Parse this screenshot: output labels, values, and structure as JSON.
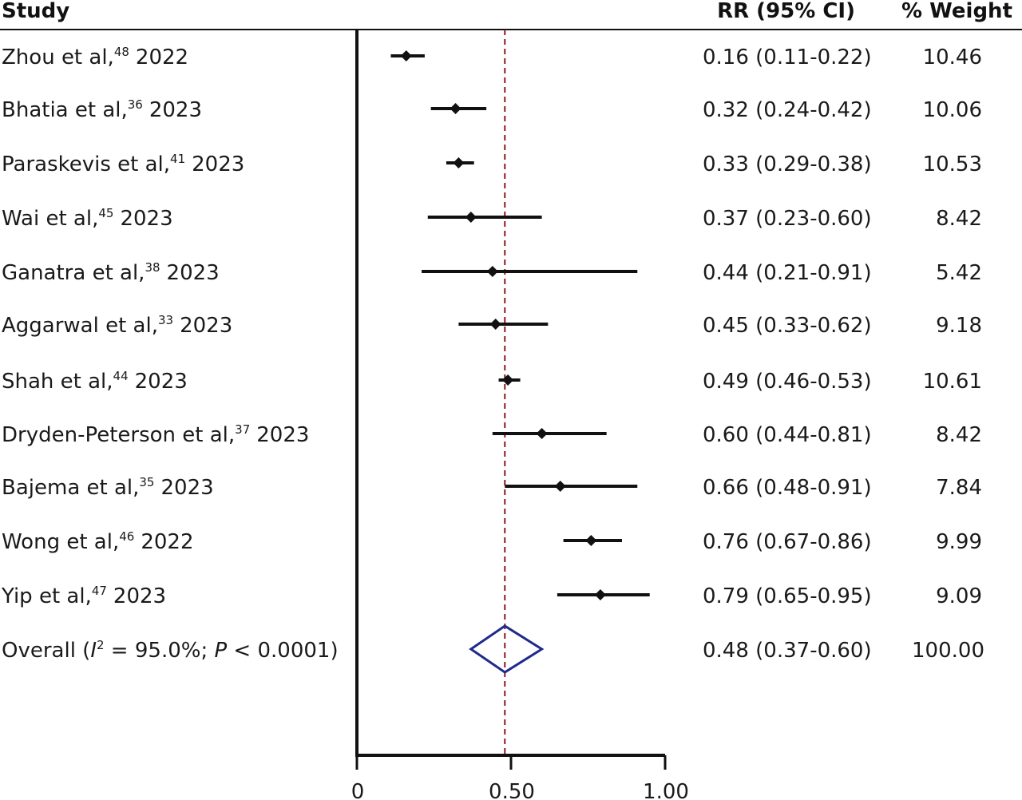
{
  "chart_data": {
    "type": "forest",
    "headers": {
      "study": "Study",
      "effect": "RR (95% CI)",
      "weight": "% Weight"
    },
    "xlim": [
      0,
      1.0
    ],
    "x_ticks": [
      0,
      0.5,
      1.0
    ],
    "x_tick_labels": [
      "0",
      "0.50",
      "1.00"
    ],
    "reference_line": 0.48,
    "studies": [
      {
        "name": "Zhou et al,",
        "ref": "48",
        "year": "2022",
        "rr": 0.16,
        "lo": 0.11,
        "hi": 0.22,
        "rr_text": "0.16 (0.11-0.22)",
        "weight": "10.46"
      },
      {
        "name": "Bhatia et al,",
        "ref": "36",
        "year": "2023",
        "rr": 0.32,
        "lo": 0.24,
        "hi": 0.42,
        "rr_text": "0.32 (0.24-0.42)",
        "weight": "10.06"
      },
      {
        "name": "Paraskevis et al,",
        "ref": "41",
        "year": "2023",
        "rr": 0.33,
        "lo": 0.29,
        "hi": 0.38,
        "rr_text": "0.33 (0.29-0.38)",
        "weight": "10.53"
      },
      {
        "name": "Wai et al,",
        "ref": "45",
        "year": "2023",
        "rr": 0.37,
        "lo": 0.23,
        "hi": 0.6,
        "rr_text": "0.37 (0.23-0.60)",
        "weight": "8.42"
      },
      {
        "name": "Ganatra et al,",
        "ref": "38",
        "year": "2023",
        "rr": 0.44,
        "lo": 0.21,
        "hi": 0.91,
        "rr_text": "0.44 (0.21-0.91)",
        "weight": "5.42"
      },
      {
        "name": "Aggarwal et al,",
        "ref": "33",
        "year": "2023",
        "rr": 0.45,
        "lo": 0.33,
        "hi": 0.62,
        "rr_text": "0.45 (0.33-0.62)",
        "weight": "9.18"
      },
      {
        "name": "Shah et al,",
        "ref": "44",
        "year": "2023",
        "rr": 0.49,
        "lo": 0.46,
        "hi": 0.53,
        "rr_text": "0.49 (0.46-0.53)",
        "weight": "10.61"
      },
      {
        "name": "Dryden-Peterson et al,",
        "ref": "37",
        "year": "2023",
        "rr": 0.6,
        "lo": 0.44,
        "hi": 0.81,
        "rr_text": "0.60 (0.44-0.81)",
        "weight": "8.42"
      },
      {
        "name": "Bajema et al,",
        "ref": "35",
        "year": "2023",
        "rr": 0.66,
        "lo": 0.48,
        "hi": 0.91,
        "rr_text": "0.66 (0.48-0.91)",
        "weight": "7.84"
      },
      {
        "name": "Wong et al,",
        "ref": "46",
        "year": "2022",
        "rr": 0.76,
        "lo": 0.67,
        "hi": 0.86,
        "rr_text": "0.76 (0.67-0.86)",
        "weight": "9.99"
      },
      {
        "name": "Yip et al,",
        "ref": "47",
        "year": "2023",
        "rr": 0.79,
        "lo": 0.65,
        "hi": 0.95,
        "rr_text": "0.79 (0.65-0.95)",
        "weight": "9.09"
      }
    ],
    "overall": {
      "prefix": "Overall (",
      "i_letter": "I",
      "i_sup": "2",
      "i_value": " = 95.0%; ",
      "p_letter": "P",
      "p_value": " < 0.0001)",
      "rr": 0.48,
      "lo": 0.37,
      "hi": 0.6,
      "rr_text": "0.48 (0.37-0.60)",
      "weight": "100.00"
    },
    "colors": {
      "marker": "#111111",
      "axis": "#111111",
      "reference_line": "#8b1a1a",
      "overall_diamond": "#1f2a8a"
    }
  }
}
